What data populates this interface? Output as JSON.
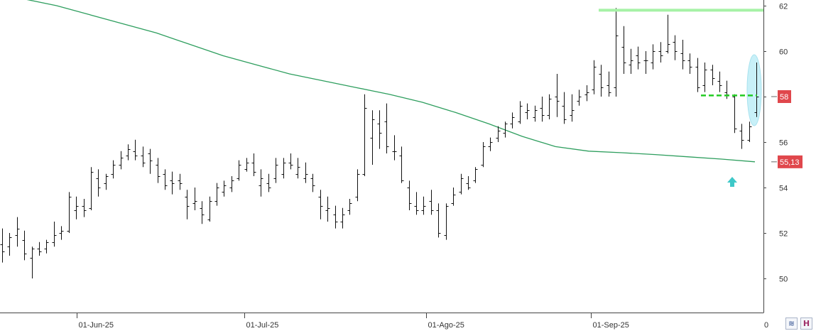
{
  "chart_data": {
    "type": "ohlc",
    "price_axis": {
      "range": [
        48.5,
        62.3
      ],
      "ticks": [
        50,
        52,
        54,
        56,
        58,
        60,
        62
      ],
      "side": "right"
    },
    "date_axis": {
      "ticks": [
        "01-Jun-25",
        "01-Jul-25",
        "01-Ago-25",
        "01-Sep-25"
      ],
      "extra_label": "0"
    },
    "badges": [
      {
        "label": "58",
        "value": 58.0,
        "color": "#e0474c"
      },
      {
        "label": "55,13",
        "value": 55.13,
        "color": "#e0474c"
      }
    ],
    "resistance_line": {
      "value": 61.8,
      "color": "#a6f2a6"
    },
    "support_dashed": {
      "value": 58.05,
      "color": "#22cc22"
    },
    "moving_average": {
      "color": "#2e9e5e",
      "values": [
        62.3,
        62.0,
        61.6,
        61.2,
        60.8,
        60.3,
        59.8,
        59.4,
        59.0,
        58.7,
        58.4,
        58.1,
        57.75,
        57.3,
        56.8,
        56.25,
        55.8,
        55.6,
        55.53,
        55.45,
        55.35,
        55.25,
        55.13
      ]
    },
    "bars": [
      [
        51.5,
        52.2,
        50.7,
        51.2
      ],
      [
        51.4,
        52.0,
        51.0,
        51.8
      ],
      [
        51.9,
        52.7,
        51.4,
        52.2
      ],
      [
        51.7,
        52.1,
        50.8,
        51.1
      ],
      [
        50.9,
        51.4,
        50.0,
        51.3
      ],
      [
        51.3,
        51.6,
        51.0,
        51.2
      ],
      [
        51.3,
        51.7,
        51.1,
        51.6
      ],
      [
        51.6,
        52.5,
        51.4,
        51.9
      ],
      [
        52.0,
        52.3,
        51.7,
        52.1
      ],
      [
        52.1,
        53.8,
        52.0,
        53.6
      ],
      [
        53.0,
        53.6,
        52.6,
        53.2
      ],
      [
        53.2,
        53.5,
        52.7,
        53.0
      ],
      [
        53.1,
        54.9,
        53.0,
        54.7
      ],
      [
        54.4,
        54.8,
        53.6,
        54.0
      ],
      [
        54.2,
        54.6,
        53.9,
        54.5
      ],
      [
        54.6,
        55.2,
        54.4,
        55.0
      ],
      [
        55.0,
        55.6,
        54.8,
        55.3
      ],
      [
        55.4,
        55.9,
        55.2,
        55.7
      ],
      [
        55.6,
        56.1,
        55.2,
        55.4
      ],
      [
        55.4,
        55.8,
        54.9,
        55.1
      ],
      [
        55.5,
        55.7,
        54.6,
        55.2
      ],
      [
        55.0,
        55.3,
        54.2,
        54.5
      ],
      [
        54.6,
        54.8,
        53.9,
        54.1
      ],
      [
        54.3,
        54.7,
        53.7,
        54.2
      ],
      [
        54.3,
        54.6,
        53.9,
        54.2
      ],
      [
        53.6,
        53.9,
        52.6,
        53.2
      ],
      [
        53.3,
        54.0,
        53.0,
        53.4
      ],
      [
        53.1,
        53.4,
        52.4,
        52.8
      ],
      [
        52.6,
        53.6,
        52.5,
        53.4
      ],
      [
        53.4,
        54.2,
        53.2,
        54.0
      ],
      [
        53.8,
        54.3,
        53.6,
        54.1
      ],
      [
        54.0,
        54.5,
        53.8,
        54.3
      ],
      [
        54.4,
        55.2,
        54.3,
        55.0
      ],
      [
        54.8,
        55.3,
        54.7,
        55.1
      ],
      [
        55.1,
        55.5,
        54.5,
        54.7
      ],
      [
        54.1,
        54.8,
        53.6,
        54.4
      ],
      [
        54.2,
        54.6,
        53.8,
        54.0
      ],
      [
        54.4,
        55.3,
        54.2,
        55.0
      ],
      [
        54.6,
        55.3,
        54.4,
        55.1
      ],
      [
        55.1,
        55.5,
        54.8,
        55.0
      ],
      [
        54.6,
        55.3,
        54.4,
        54.9
      ],
      [
        54.4,
        55.1,
        54.2,
        54.6
      ],
      [
        54.4,
        54.6,
        53.8,
        54.1
      ],
      [
        53.6,
        53.9,
        52.6,
        53.2
      ],
      [
        53.0,
        53.6,
        52.5,
        53.1
      ],
      [
        52.8,
        53.2,
        52.2,
        52.5
      ],
      [
        52.5,
        53.1,
        52.2,
        52.8
      ],
      [
        53.0,
        53.5,
        52.8,
        53.3
      ],
      [
        53.6,
        54.8,
        53.4,
        54.6
      ],
      [
        54.6,
        58.1,
        54.5,
        57.5
      ],
      [
        56.2,
        57.4,
        55.0,
        57.0
      ],
      [
        56.8,
        57.4,
        55.7,
        56.4
      ],
      [
        56.9,
        57.7,
        55.5,
        55.8
      ],
      [
        55.6,
        56.3,
        55.2,
        55.6
      ],
      [
        55.4,
        55.8,
        54.2,
        54.3
      ],
      [
        54.0,
        54.3,
        53.0,
        53.3
      ],
      [
        53.2,
        53.8,
        52.8,
        53.0
      ],
      [
        53.0,
        53.6,
        52.8,
        53.2
      ],
      [
        53.4,
        53.9,
        52.8,
        53.0
      ],
      [
        53.0,
        53.3,
        51.8,
        52.0
      ],
      [
        51.9,
        53.3,
        51.7,
        53.2
      ],
      [
        53.3,
        54.0,
        53.2,
        53.7
      ],
      [
        53.8,
        54.6,
        53.7,
        54.4
      ],
      [
        54.2,
        54.5,
        53.9,
        54.0
      ],
      [
        54.3,
        54.9,
        54.2,
        54.8
      ],
      [
        55.0,
        56.0,
        54.9,
        55.8
      ],
      [
        55.8,
        56.2,
        55.6,
        56.0
      ],
      [
        56.2,
        56.7,
        56.0,
        56.5
      ],
      [
        56.4,
        56.9,
        56.2,
        56.8
      ],
      [
        56.8,
        57.3,
        56.6,
        57.1
      ],
      [
        56.9,
        57.8,
        56.8,
        57.6
      ],
      [
        57.3,
        57.7,
        57.0,
        57.4
      ],
      [
        57.1,
        57.6,
        56.9,
        57.4
      ],
      [
        57.5,
        58.0,
        56.9,
        57.2
      ],
      [
        57.2,
        58.1,
        57.0,
        57.9
      ],
      [
        58.0,
        59.0,
        57.1,
        57.8
      ],
      [
        57.6,
        58.2,
        56.8,
        57.0
      ],
      [
        57.2,
        58.1,
        56.9,
        57.4
      ],
      [
        57.8,
        58.3,
        57.6,
        58.0
      ],
      [
        58.1,
        58.5,
        57.8,
        58.2
      ],
      [
        58.3,
        59.6,
        58.1,
        59.3
      ],
      [
        59.0,
        59.4,
        58.0,
        58.4
      ],
      [
        58.5,
        59.1,
        58.0,
        58.2
      ],
      [
        58.4,
        61.9,
        58.0,
        60.7
      ],
      [
        60.2,
        61.1,
        59.0,
        59.5
      ],
      [
        59.4,
        60.1,
        59.0,
        59.6
      ],
      [
        59.8,
        60.2,
        59.2,
        59.5
      ],
      [
        59.6,
        60.0,
        59.0,
        59.6
      ],
      [
        59.5,
        60.3,
        59.2,
        60.0
      ],
      [
        60.0,
        60.4,
        59.5,
        59.8
      ],
      [
        60.0,
        61.6,
        59.9,
        60.3
      ],
      [
        60.4,
        60.7,
        59.6,
        60.0
      ],
      [
        59.9,
        60.5,
        59.2,
        59.6
      ],
      [
        59.6,
        59.9,
        59.0,
        59.3
      ],
      [
        59.3,
        59.7,
        58.2,
        58.4
      ],
      [
        58.5,
        59.5,
        58.2,
        59.2
      ],
      [
        59.2,
        59.4,
        58.5,
        58.8
      ],
      [
        58.7,
        59.1,
        58.2,
        58.5
      ],
      [
        58.2,
        58.7,
        57.9,
        58.1
      ],
      [
        58.0,
        58.1,
        56.4,
        56.6
      ],
      [
        56.5,
        56.8,
        55.7,
        56.1
      ],
      [
        56.1,
        56.9,
        56.0,
        56.7
      ],
      [
        57.3,
        59.5,
        57.1,
        58.0
      ]
    ],
    "annotations": [
      {
        "type": "ellipse",
        "label": "highlight",
        "color": "#c8f0f8"
      },
      {
        "type": "arrow-up",
        "color": "#3ec8c8"
      }
    ]
  },
  "toolbar": {
    "btn1_icon": "≋",
    "btn2_icon": "H"
  }
}
